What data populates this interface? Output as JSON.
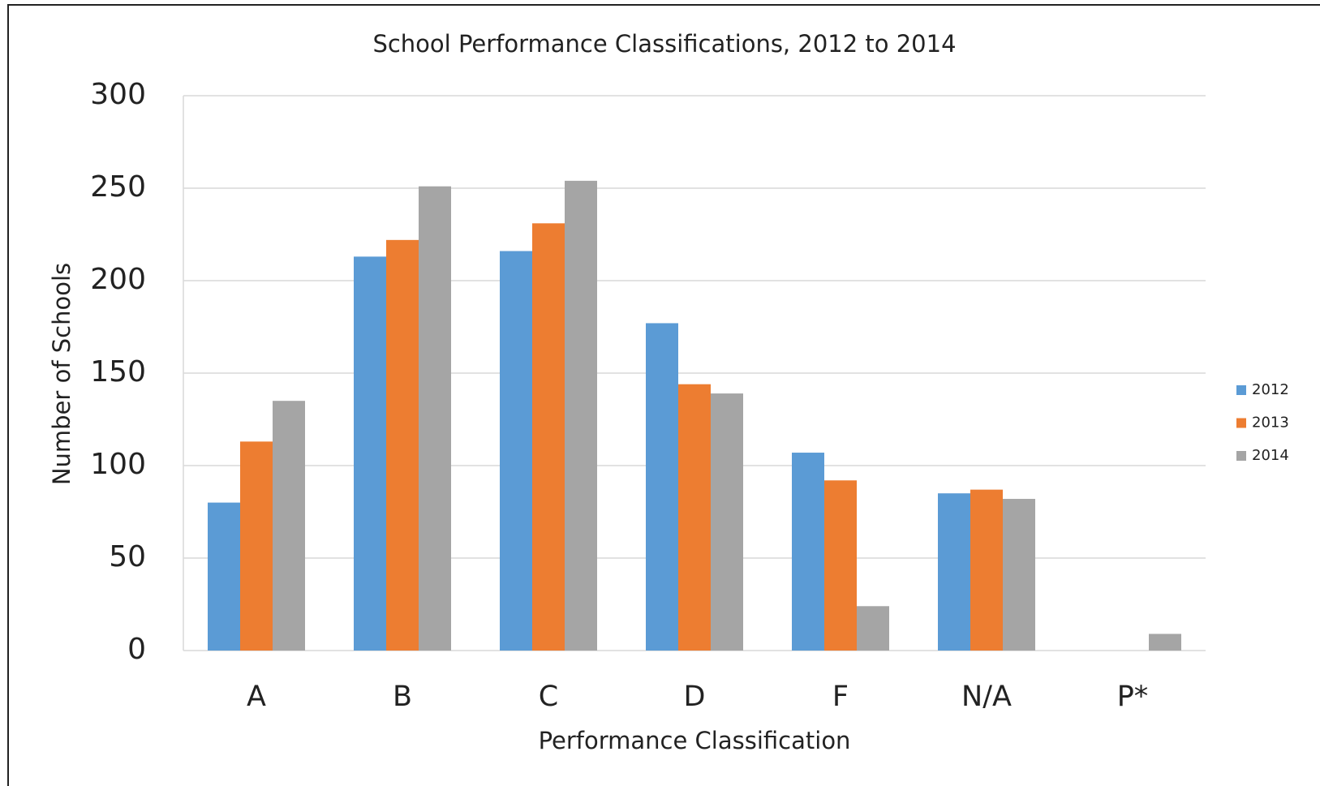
{
  "chart_data": {
    "type": "bar",
    "title": "School Performance Classifications, 2012 to 2014",
    "x_label": "Performance Classification",
    "y_label": "Number of Schools",
    "categories": [
      "A",
      "B",
      "C",
      "D",
      "F",
      "N/A",
      "P*"
    ],
    "series": [
      {
        "name": "2012",
        "color": "#5b9bd5",
        "values": [
          80,
          213,
          216,
          177,
          107,
          85,
          null
        ]
      },
      {
        "name": "2013",
        "color": "#ed7d31",
        "values": [
          113,
          222,
          231,
          144,
          92,
          87,
          null
        ]
      },
      {
        "name": "2014",
        "color": "#a5a5a5",
        "values": [
          135,
          251,
          254,
          139,
          24,
          82,
          9
        ]
      }
    ],
    "ylim": [
      0,
      300
    ],
    "yticks": [
      0,
      50,
      100,
      150,
      200,
      250,
      300
    ],
    "grid": true,
    "legend": "right"
  }
}
